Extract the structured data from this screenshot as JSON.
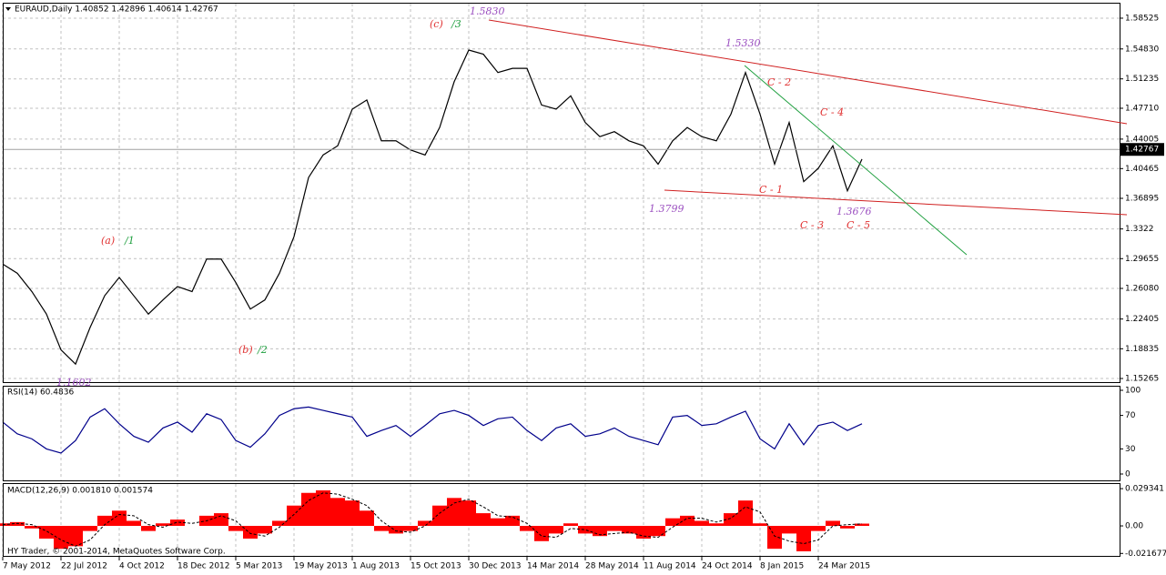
{
  "chart_data": [
    {
      "type": "line",
      "title": "EURAUD,Daily  1.40852 1.42896 1.40614 1.42767",
      "last_price": 1.42767,
      "color": "#000000",
      "categories": [
        "7 May 2012",
        null,
        null,
        null,
        "22 Jul 2012",
        null,
        null,
        null,
        "4 Oct 2012",
        null,
        null,
        null,
        "18 Dec 2012",
        null,
        null,
        null,
        "5 Mar 2013",
        null,
        null,
        null,
        "19 May 2013",
        null,
        null,
        null,
        "1 Aug 2013",
        null,
        null,
        null,
        "15 Oct 2013",
        null,
        null,
        null,
        "30 Dec 2013",
        null,
        null,
        null,
        "14 Mar 2014",
        null,
        null,
        null,
        "28 May 2014",
        null,
        null,
        null,
        "11 Aug 2014",
        null,
        null,
        null,
        "24 Oct 2014",
        null,
        null,
        null,
        "8 Jan 2015",
        null,
        null,
        null,
        "24 Mar 2015",
        null,
        null,
        null
      ],
      "values": [
        1.29,
        1.279,
        1.257,
        1.23,
        1.187,
        1.17,
        1.214,
        1.252,
        1.274,
        1.252,
        1.23,
        1.247,
        1.263,
        1.257,
        1.296,
        1.296,
        1.268,
        1.236,
        1.247,
        1.279,
        1.323,
        1.394,
        1.421,
        1.432,
        1.476,
        1.487,
        1.438,
        1.438,
        1.427,
        1.421,
        1.454,
        1.509,
        1.547,
        1.542,
        1.52,
        1.525,
        1.525,
        1.481,
        1.476,
        1.492,
        1.46,
        1.443,
        1.449,
        1.438,
        1.432,
        1.41,
        1.438,
        1.454,
        1.443,
        1.438,
        1.47,
        1.52,
        1.47,
        1.41,
        1.46,
        1.389,
        1.405,
        1.432,
        1.378,
        1.416
      ],
      "ylim": [
        1.1483,
        1.6016
      ],
      "yticks": [
        1.58525,
        {
          "value": 1.5483,
          "label": "1.54830"
        },
        1.51235,
        {
          "value": 1.4771,
          "label": "1.47710"
        },
        1.44005,
        1.40465,
        1.36895,
        1.3322,
        1.29655,
        {
          "value": 1.2608,
          "label": "1.26080"
        },
        1.22405,
        1.18835,
        1.15265
      ],
      "grid": true,
      "annotations": [
        {
          "text": "(c)"
        },
        {
          "text": "/3"
        },
        {
          "text": "1.5830"
        },
        {
          "text": "1.5330"
        },
        {
          "text": "C - 2"
        },
        {
          "text": "C - 4"
        },
        {
          "text": "1.3799"
        },
        {
          "text": "C - 1"
        },
        {
          "text": "1.3676"
        },
        {
          "text": "C - 3"
        },
        {
          "text": "C - 5"
        },
        {
          "text": "(a)"
        },
        {
          "text": "/1"
        },
        {
          "text": "(b)"
        },
        {
          "text": "/2"
        },
        {
          "text": "1.1602"
        }
      ]
    },
    {
      "type": "line",
      "title": "RSI(14) 60.4836",
      "color": "#00008b",
      "values": [
        62,
        48,
        42,
        30,
        25,
        40,
        68,
        78,
        60,
        45,
        38,
        55,
        62,
        50,
        72,
        65,
        40,
        32,
        48,
        70,
        78,
        80,
        76,
        72,
        68,
        45,
        52,
        58,
        45,
        58,
        72,
        76,
        70,
        58,
        66,
        68,
        52,
        40,
        55,
        60,
        45,
        48,
        55,
        45,
        40,
        35,
        68,
        70,
        58,
        60,
        68,
        75,
        42,
        30,
        60,
        35,
        58,
        62,
        52,
        60
      ],
      "ylim": [
        0,
        100
      ],
      "yticks": [
        100,
        70,
        30,
        0
      ]
    },
    {
      "type": "bar",
      "title": "MACD(12,26,9) 0.001810 0.001574",
      "color": "#ff0000",
      "signal_color": "#000000",
      "values": [
        0.002,
        0.003,
        -0.002,
        -0.01,
        -0.018,
        -0.016,
        -0.004,
        0.008,
        0.012,
        0.004,
        -0.004,
        0.002,
        0.005,
        0.0,
        0.008,
        0.01,
        -0.004,
        -0.01,
        -0.006,
        0.004,
        0.016,
        0.026,
        0.028,
        0.022,
        0.02,
        0.012,
        -0.004,
        -0.006,
        -0.004,
        0.004,
        0.016,
        0.022,
        0.02,
        0.01,
        0.006,
        0.008,
        -0.004,
        -0.012,
        -0.006,
        0.002,
        -0.006,
        -0.008,
        -0.004,
        -0.006,
        -0.01,
        -0.008,
        0.006,
        0.008,
        0.004,
        0.002,
        0.01,
        0.02,
        0.002,
        -0.018,
        -0.006,
        -0.02,
        -0.004,
        0.004,
        -0.002,
        0.0018
      ],
      "signal": [
        0.001,
        0.002,
        0.001,
        -0.004,
        -0.011,
        -0.016,
        -0.011,
        0.001,
        0.009,
        0.008,
        0.001,
        -0.001,
        0.003,
        0.002,
        0.004,
        0.008,
        0.004,
        -0.006,
        -0.008,
        -0.001,
        0.009,
        0.02,
        0.026,
        0.025,
        0.021,
        0.016,
        0.004,
        -0.004,
        -0.005,
        0.0,
        0.01,
        0.018,
        0.021,
        0.015,
        0.008,
        0.007,
        0.002,
        -0.008,
        -0.009,
        -0.002,
        -0.003,
        -0.007,
        -0.006,
        -0.005,
        -0.008,
        -0.009,
        -0.001,
        0.006,
        0.006,
        0.003,
        0.006,
        0.015,
        0.011,
        -0.008,
        -0.012,
        -0.014,
        -0.011,
        0.0,
        0.001,
        0.0016
      ],
      "ylim": [
        -0.0229,
        0.0337
      ],
      "yticks": [
        0.029341,
        {
          "value": 0,
          "label": "0.00"
        },
        -0.021677
      ]
    },
    {
      "footer": "HY Trader, © 2001-2014, MetaQuotes Software Corp."
    }
  ]
}
